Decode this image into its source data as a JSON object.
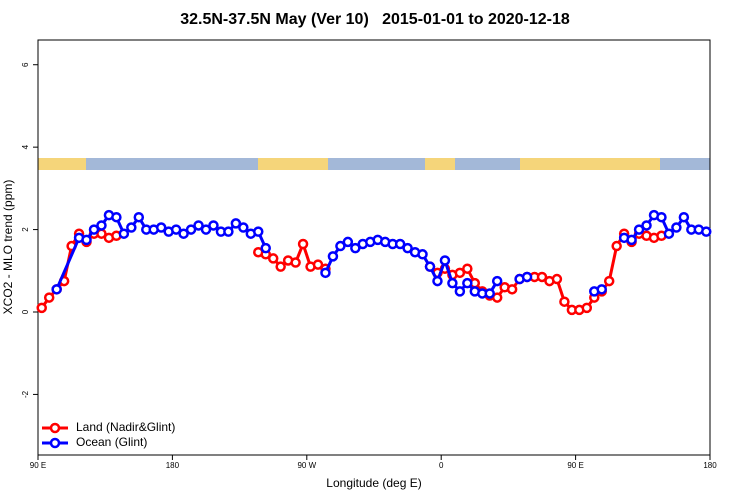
{
  "chart_data": {
    "type": "line",
    "title": "32.5N-37.5N May (Ver 10)   2015-01-01 to 2020-12-18",
    "xlabel": "Longitude (deg E)",
    "ylabel": "XCO2 - MLO trend (ppm)",
    "xlim": [
      90,
      540
    ],
    "ylim": [
      -3.47,
      6.6
    ],
    "xticks": [
      {
        "value": 90,
        "label": "90 E"
      },
      180,
      {
        "value": 270,
        "label": "90 W"
      },
      {
        "value": 360,
        "label": "0"
      },
      {
        "value": 450,
        "label": "90 E"
      },
      {
        "value": 540,
        "label": "180"
      }
    ],
    "yticks": [
      -2,
      0,
      2,
      4,
      6
    ],
    "legend": "bottomleft",
    "series": [
      {
        "name": "Land (Nadir&Glint)",
        "color": "#ff0000",
        "x": [
          92.5,
          97.5,
          102.5,
          107.5,
          112.5,
          117.5,
          122.5,
          127.5,
          132.5,
          137.5,
          142.5,
          147.5,
          237.5,
          242.5,
          247.5,
          252.5,
          257.5,
          262.5,
          267.5,
          272.5,
          277.5,
          282.5,
          287.5,
          352.5,
          357.5,
          362.5,
          367.5,
          372.5,
          377.5,
          382.5,
          387.5,
          392.5,
          397.5,
          402.5,
          407.5,
          412.5,
          417.5,
          422.5,
          427.5,
          432.5,
          437.5,
          442.5,
          447.5,
          452.5,
          457.5,
          462.5,
          467.5,
          472.5,
          477.5,
          482.5,
          487.5,
          492.5,
          497.5,
          502.5,
          507.5
        ],
        "values": [
          0.1,
          0.35,
          0.55,
          0.75,
          1.6,
          1.9,
          1.7,
          1.9,
          1.9,
          1.8,
          1.85,
          null,
          1.45,
          1.4,
          1.3,
          1.1,
          1.25,
          1.2,
          1.65,
          1.1,
          1.15,
          1.05,
          null,
          1.1,
          0.95,
          1.05,
          0.9,
          0.95,
          1.05,
          0.7,
          0.5,
          0.4,
          0.35,
          0.6,
          0.55,
          0.8,
          0.85,
          0.85,
          0.85,
          0.75,
          0.8,
          0.25,
          0.05,
          0.05,
          0.1,
          0.35,
          0.5,
          0.75,
          1.6,
          1.9,
          1.7,
          1.9,
          1.85,
          1.8,
          1.85
        ]
      },
      {
        "name": "Ocean (Glint)",
        "color": "#0000ff",
        "x": [
          102.5,
          117.5,
          122.5,
          127.5,
          132.5,
          137.5,
          142.5,
          147.5,
          152.5,
          157.5,
          162.5,
          167.5,
          172.5,
          177.5,
          182.5,
          187.5,
          192.5,
          197.5,
          202.5,
          207.5,
          212.5,
          217.5,
          222.5,
          227.5,
          232.5,
          237.5,
          242.5,
          247.5,
          282.5,
          287.5,
          292.5,
          297.5,
          302.5,
          307.5,
          312.5,
          317.5,
          322.5,
          327.5,
          332.5,
          337.5,
          342.5,
          347.5,
          352.5,
          357.5,
          362.5,
          367.5,
          372.5,
          377.5,
          382.5,
          387.5,
          392.5,
          397.5,
          402.5,
          412.5,
          417.5,
          422.5,
          462.5,
          467.5,
          472.5,
          482.5,
          487.5,
          492.5,
          497.5,
          502.5,
          507.5,
          512.5,
          517.5,
          522.5,
          527.5,
          532.5,
          537.5
        ],
        "values": [
          0.55,
          1.8,
          1.75,
          2.0,
          2.1,
          2.35,
          2.3,
          1.9,
          2.05,
          2.3,
          2.0,
          2.0,
          2.05,
          1.95,
          2.0,
          1.9,
          2.0,
          2.1,
          2.0,
          2.1,
          1.95,
          1.95,
          2.15,
          2.05,
          1.9,
          1.95,
          1.55,
          null,
          0.95,
          1.35,
          1.6,
          1.7,
          1.55,
          1.65,
          1.7,
          1.75,
          1.7,
          1.65,
          1.65,
          1.55,
          1.45,
          1.4,
          1.1,
          0.75,
          1.25,
          0.7,
          0.5,
          0.7,
          0.5,
          0.45,
          0.45,
          0.75,
          null,
          0.8,
          0.85,
          null,
          0.5,
          0.55,
          null,
          1.8,
          1.75,
          2.0,
          2.1,
          2.35,
          2.3,
          1.9,
          2.05,
          2.3,
          2.0,
          2.0,
          1.95
        ]
      }
    ]
  }
}
